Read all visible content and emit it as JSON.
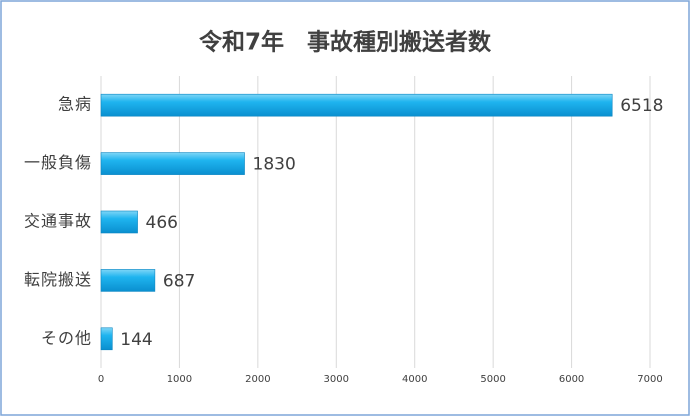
{
  "chart_data": {
    "type": "bar",
    "orientation": "horizontal",
    "title": "令和7年　事故種別搬送者数",
    "categories": [
      "急病",
      "一般負傷",
      "交通事故",
      "転院搬送",
      "その他"
    ],
    "values": [
      6518,
      1830,
      466,
      687,
      144
    ],
    "color": "#1fb4ef",
    "xlim": [
      0,
      7000
    ],
    "xticks": [
      0,
      1000,
      2000,
      3000,
      4000,
      5000,
      6000,
      7000
    ],
    "grid": true
  }
}
